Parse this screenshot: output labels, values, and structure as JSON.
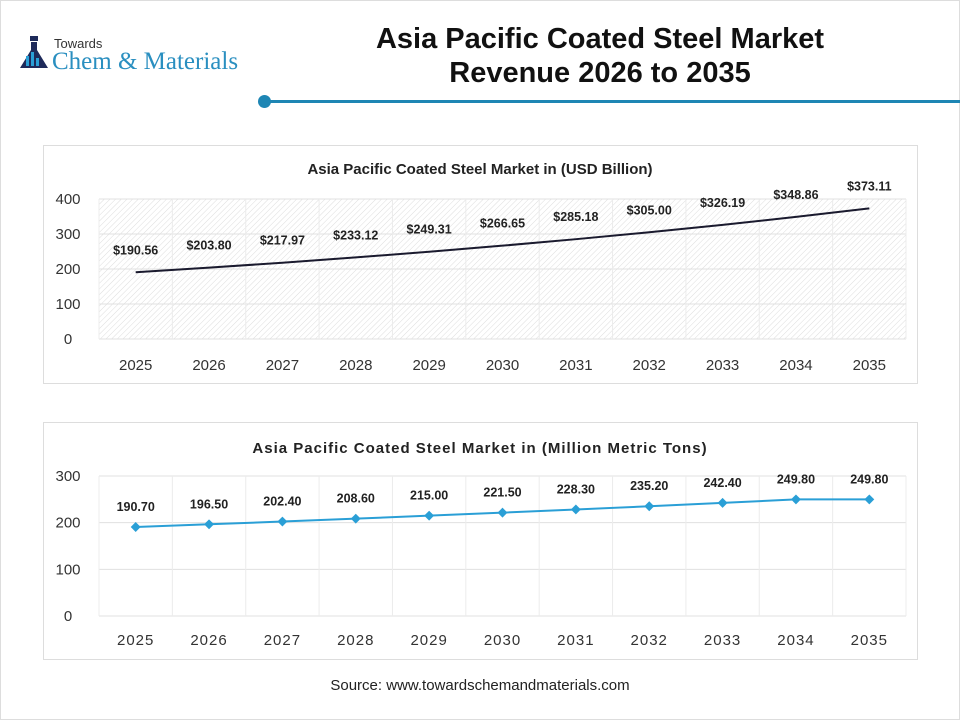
{
  "header": {
    "logo_top": "Towards",
    "logo_main": "Chem & Materials",
    "title_line1": "Asia Pacific Coated Steel Market",
    "title_line2": "Revenue 2026 to 2035"
  },
  "colors": {
    "accent": "#1e86b4",
    "line1": "#1a1a2e",
    "line2": "#2a9fd6"
  },
  "chart_data": [
    {
      "type": "line",
      "title": "Asia Pacific Coated Steel Market in (USD Billion)",
      "categories": [
        "2025",
        "2026",
        "2027",
        "2028",
        "2029",
        "2030",
        "2031",
        "2032",
        "2033",
        "2034",
        "2035"
      ],
      "values": [
        190.56,
        203.8,
        217.97,
        233.12,
        249.31,
        266.65,
        285.18,
        305.0,
        326.19,
        348.86,
        373.11
      ],
      "labels": [
        "$190.56",
        "$203.80",
        "$217.97",
        "$233.12",
        "$249.31",
        "$266.65",
        "$285.18",
        "$305.00",
        "$326.19",
        "$348.86",
        "$373.11"
      ],
      "yticks": [
        "0",
        "100",
        "200",
        "300",
        "400"
      ],
      "ylim": [
        0,
        400
      ],
      "grid": true
    },
    {
      "type": "line",
      "title": "Asia Pacific Coated Steel Market in (Million Metric Tons)",
      "categories": [
        "2025",
        "2026",
        "2027",
        "2028",
        "2029",
        "2030",
        "2031",
        "2032",
        "2033",
        "2034",
        "2035"
      ],
      "values": [
        190.7,
        196.5,
        202.4,
        208.6,
        215.0,
        221.5,
        228.3,
        235.2,
        242.4,
        249.8,
        249.8
      ],
      "labels": [
        "190.70",
        "196.50",
        "202.40",
        "208.60",
        "215.00",
        "221.50",
        "228.30",
        "235.20",
        "242.40",
        "249.80",
        "249.80"
      ],
      "yticks": [
        "0",
        "100",
        "200",
        "300"
      ],
      "ylim": [
        0,
        300
      ],
      "grid": true
    }
  ],
  "footer": {
    "source": "Source: www.towardschemandmaterials.com"
  }
}
